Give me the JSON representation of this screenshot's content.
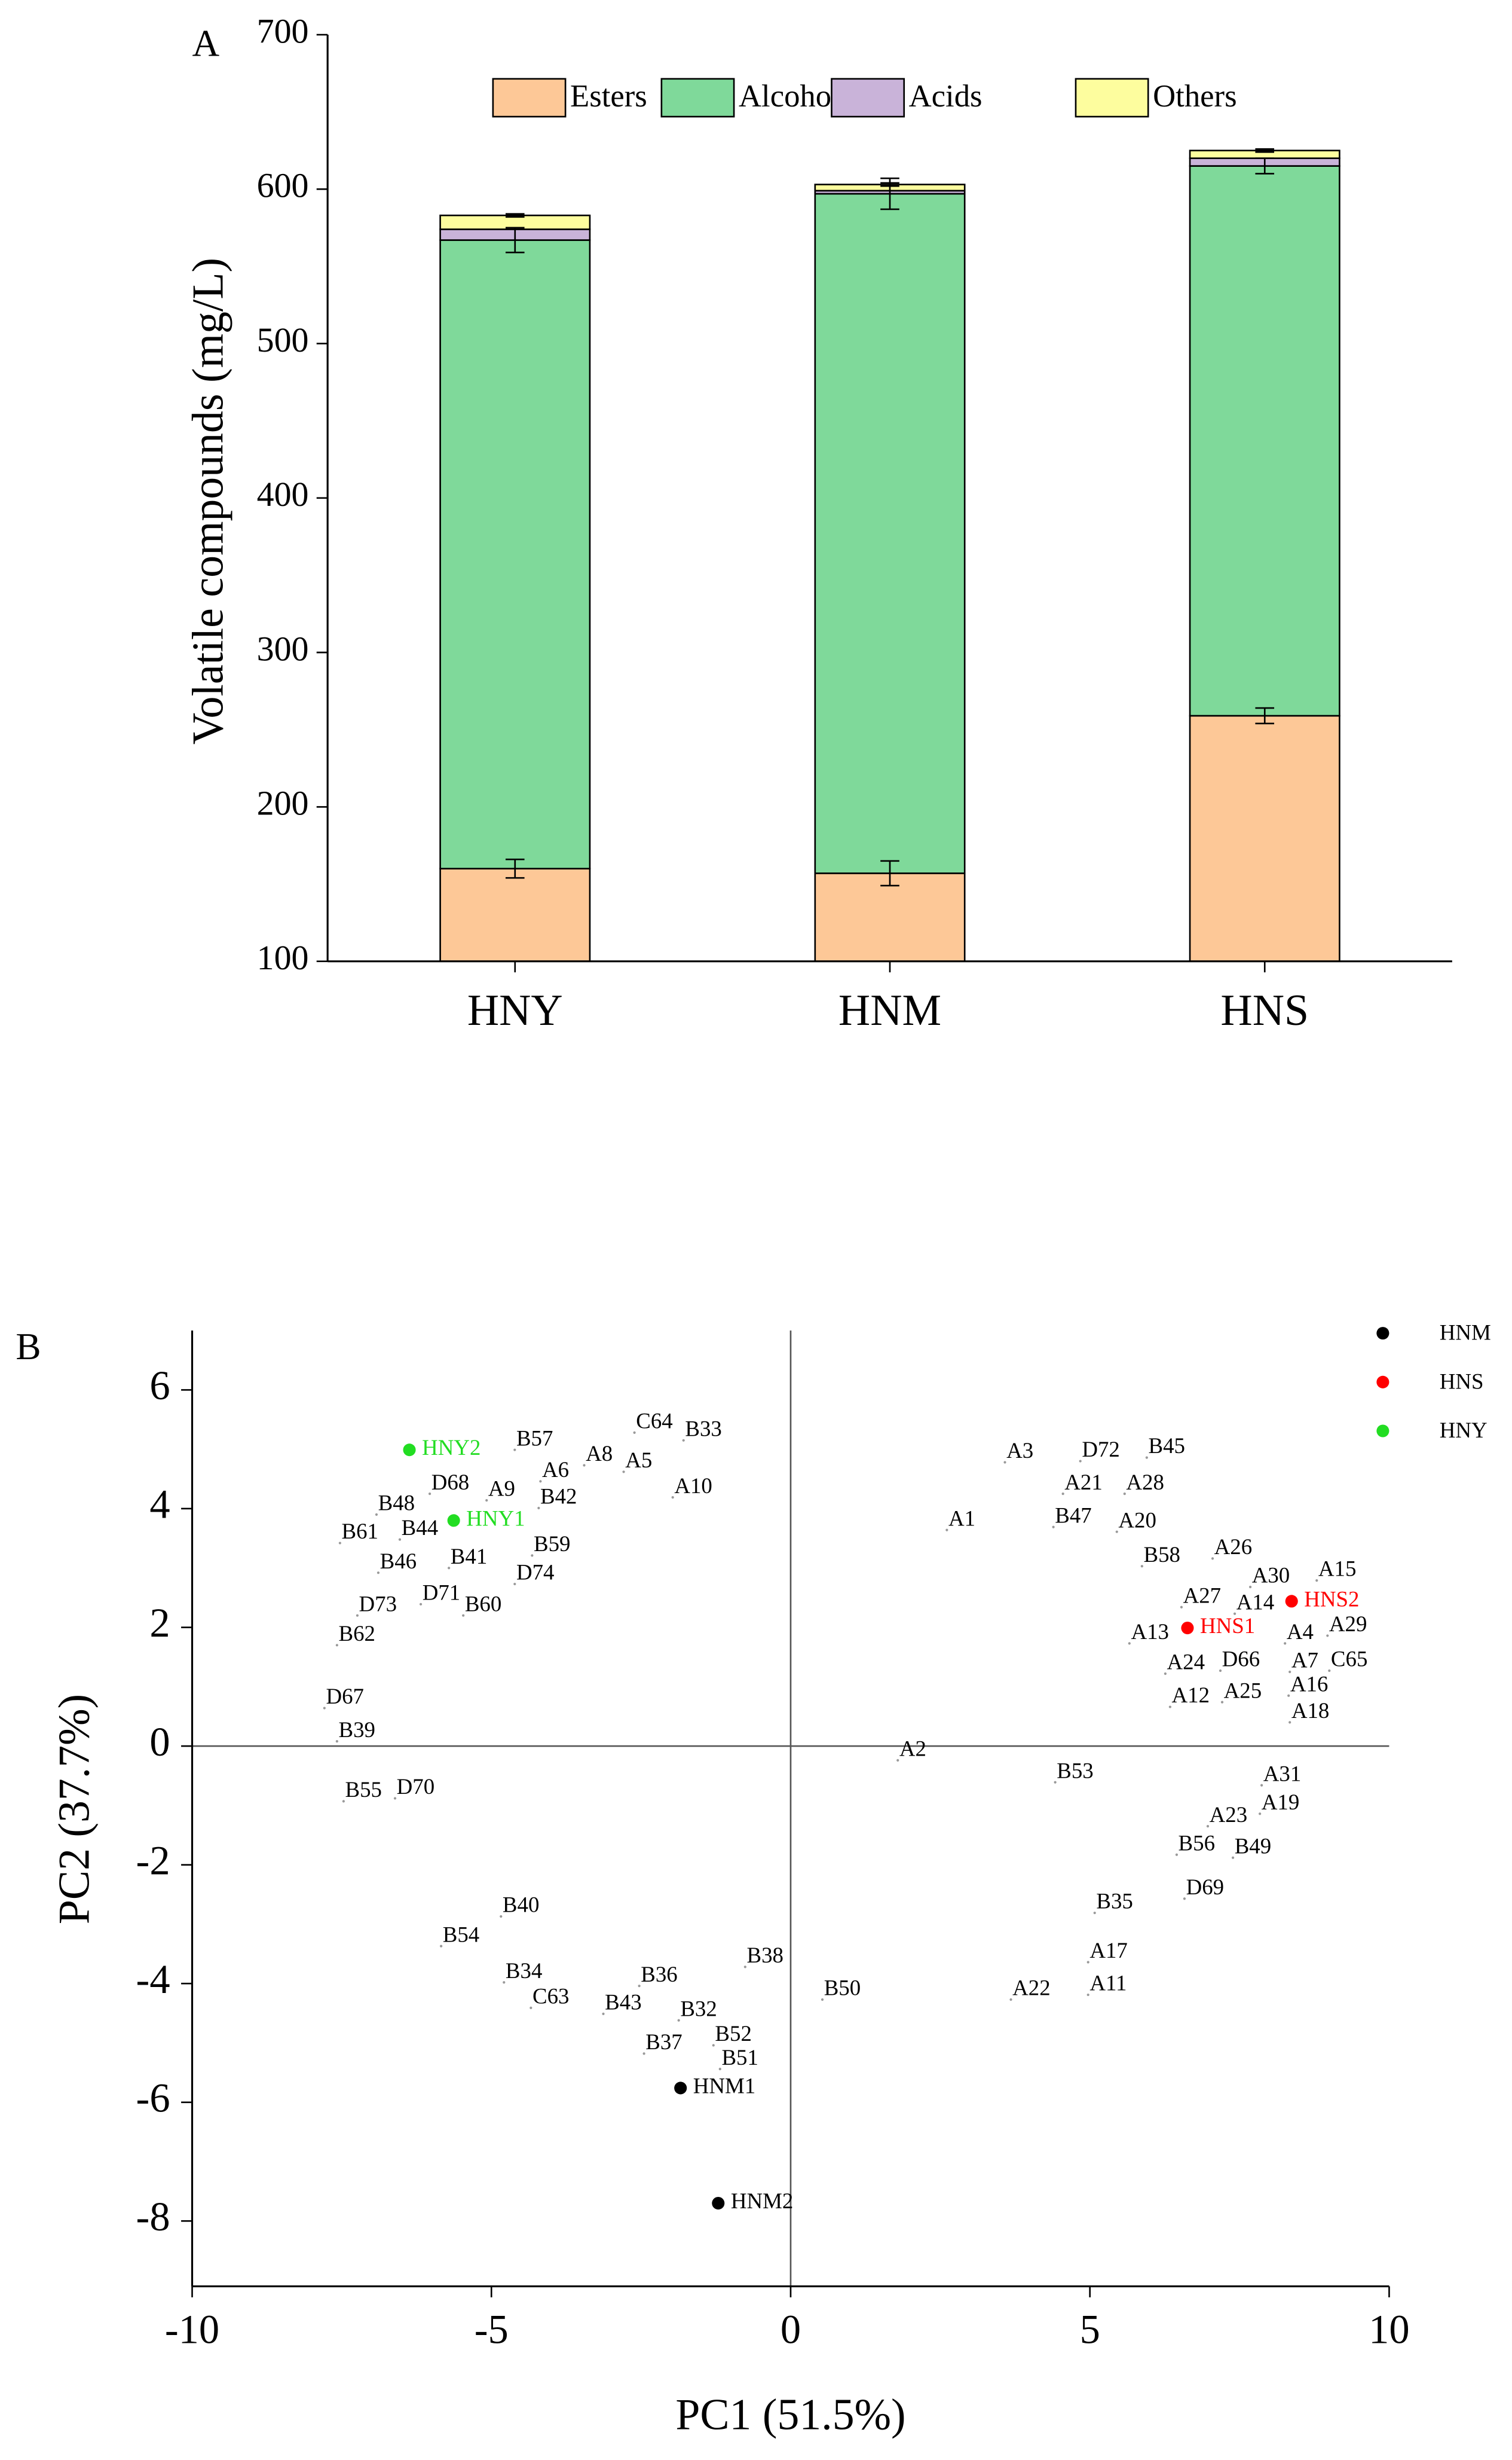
{
  "chart_data": [
    {
      "type": "bar",
      "panel": "A",
      "ylabel": "Volatile compounds (mg/L)",
      "categories": [
        "HNY",
        "HNM",
        "HNS"
      ],
      "series": [
        {
          "name": "Esters",
          "color": "#fdc897",
          "values": [
            160,
            157,
            259
          ],
          "errors": [
            6,
            8,
            5
          ]
        },
        {
          "name": "Alcohols",
          "color": "#7fd99a",
          "values": [
            407,
            440,
            356
          ],
          "errors": [
            8,
            10,
            5
          ]
        },
        {
          "name": "Acids",
          "color": "#c9b3d9",
          "values": [
            7,
            2,
            5
          ],
          "errors": [
            null,
            null,
            null
          ]
        },
        {
          "name": "Others",
          "color": "#fdfd9e",
          "values": [
            9,
            4,
            5
          ],
          "errors": [
            1,
            1,
            1
          ]
        }
      ],
      "ylim": [
        100,
        700
      ],
      "yticks": [
        100,
        200,
        300,
        400,
        500,
        600,
        700
      ]
    },
    {
      "type": "scatter",
      "panel": "B",
      "xlabel": "PC1 (51.5%)",
      "ylabel": "PC2 (37.7%)",
      "xlim": [
        -10,
        10
      ],
      "xticks": [
        -10,
        -5,
        0,
        5,
        10
      ],
      "ylim": [
        -9.1,
        7
      ],
      "yticks": [
        -8,
        -6,
        -4,
        -2,
        0,
        2,
        4,
        6
      ],
      "series": [
        {
          "name": "HNM",
          "color": "#000000",
          "labels": [
            "HNM1",
            "HNM2"
          ],
          "x": [
            -1.84,
            -1.21
          ],
          "y": [
            -5.76,
            -7.7
          ]
        },
        {
          "name": "HNS",
          "color": "#ff0000",
          "labels": [
            "HNS1",
            "HNS2"
          ],
          "x": [
            6.63,
            8.37
          ],
          "y": [
            1.99,
            2.44
          ]
        },
        {
          "name": "HNY",
          "color": "#22dd22",
          "labels": [
            "HNY1",
            "HNY2"
          ],
          "x": [
            -5.63,
            -6.37
          ],
          "y": [
            3.8,
            4.99
          ]
        }
      ],
      "loadings": {
        "labels": [
          "A3",
          "D72",
          "B45",
          "A21",
          "A28",
          "A1",
          "B47",
          "A20",
          "B58",
          "A26",
          "A30",
          "A15",
          "A27",
          "A14",
          "A13",
          "A4",
          "A29",
          "A24",
          "D66",
          "A7",
          "C65",
          "A16",
          "A12",
          "A25",
          "A18",
          "A2",
          "B53",
          "A31",
          "A19",
          "A23",
          "B56",
          "B49",
          "D69",
          "B35",
          "A17",
          "A11",
          "A22",
          "B50",
          "B38",
          "B36",
          "B32",
          "B52",
          "B51",
          "B37",
          "B43",
          "C63",
          "B34",
          "B40",
          "B54",
          "B55",
          "D70",
          "B39",
          "D67",
          "B62",
          "D73",
          "D71",
          "B60",
          "B46",
          "B41",
          "D74",
          "B59",
          "B61",
          "B44",
          "B48",
          "D68",
          "A9",
          "B42",
          "A6",
          "A8",
          "A5",
          "A10",
          "B57",
          "C64",
          "B33"
        ],
        "x": [
          3.58,
          4.84,
          5.95,
          4.55,
          5.58,
          2.61,
          4.39,
          5.45,
          5.87,
          7.05,
          7.68,
          8.79,
          6.53,
          7.42,
          5.66,
          8.26,
          8.97,
          6.26,
          7.18,
          8.34,
          9.0,
          8.32,
          6.34,
          7.21,
          8.34,
          1.79,
          4.42,
          7.87,
          7.84,
          6.97,
          6.45,
          7.39,
          6.58,
          5.08,
          4.97,
          4.97,
          3.68,
          0.53,
          -0.76,
          -2.53,
          -1.87,
          -1.29,
          -1.18,
          -2.45,
          -3.13,
          -4.34,
          -4.79,
          -4.84,
          -5.84,
          -7.47,
          -6.61,
          -7.58,
          -7.79,
          -7.58,
          -7.24,
          -6.18,
          -5.47,
          -6.89,
          -5.71,
          -4.61,
          -4.32,
          -7.53,
          -6.53,
          -6.92,
          -6.03,
          -5.08,
          -4.21,
          -4.18,
          -3.45,
          -2.79,
          -1.97,
          -4.61,
          -2.61,
          -1.79
        ],
        "y": [
          4.78,
          4.8,
          4.86,
          4.25,
          4.25,
          3.64,
          3.69,
          3.61,
          3.03,
          3.16,
          2.68,
          2.79,
          2.34,
          2.23,
          1.73,
          1.73,
          1.86,
          1.22,
          1.27,
          1.25,
          1.27,
          0.85,
          0.66,
          0.74,
          0.4,
          -0.24,
          -0.61,
          -0.66,
          -1.14,
          -1.35,
          -1.83,
          -1.88,
          -2.57,
          -2.81,
          -3.64,
          -4.19,
          -4.27,
          -4.27,
          -3.72,
          -4.04,
          -4.62,
          -5.04,
          -5.44,
          -5.18,
          -4.51,
          -4.41,
          -3.98,
          -2.87,
          -3.37,
          -0.93,
          -0.88,
          0.08,
          0.64,
          1.7,
          2.2,
          2.39,
          2.2,
          2.92,
          3.0,
          2.73,
          3.21,
          3.42,
          3.48,
          3.9,
          4.25,
          4.14,
          4.01,
          4.46,
          4.73,
          4.62,
          4.19,
          4.99,
          5.28,
          5.15
        ]
      }
    }
  ]
}
